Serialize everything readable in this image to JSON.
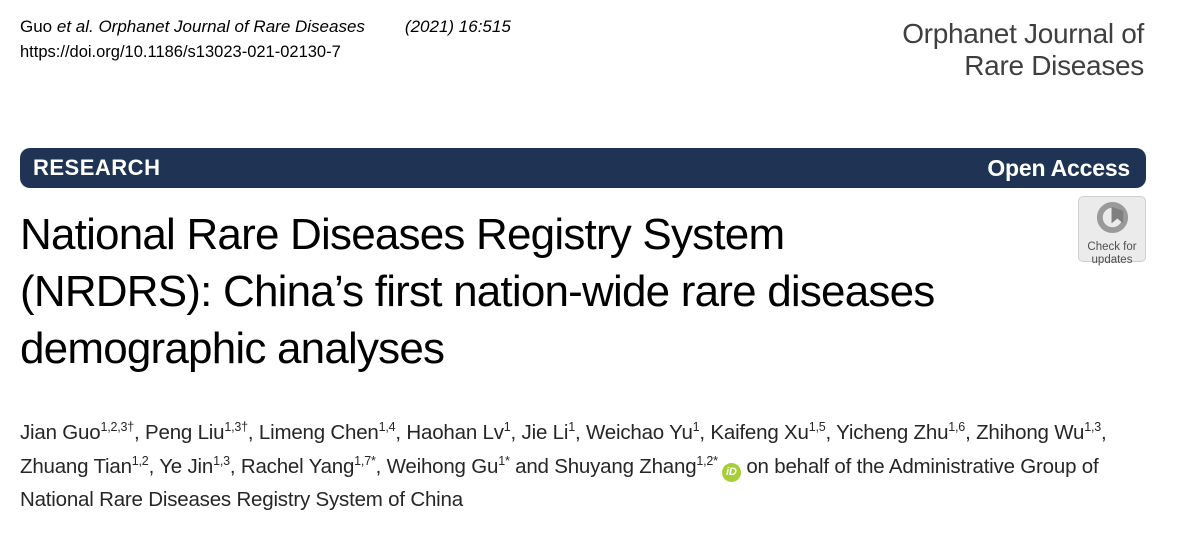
{
  "citation": {
    "author": "Guo",
    "journal_italic": " et al. Orphanet Journal of Rare Diseases",
    "issue": "(2021) 16:515",
    "doi": "https://doi.org/10.1186/s13023-021-02130-7"
  },
  "masthead": {
    "journal_name": "Orphanet Journal of\nRare Diseases"
  },
  "banner": {
    "type_label": "RESEARCH",
    "access_label": "Open Access",
    "background_color": "#1f3354",
    "text_color": "#ffffff"
  },
  "check_badge": {
    "label": "Check for\nupdates"
  },
  "article": {
    "title": "National Rare Diseases Registry System\n(NRDRS): China’s first nation-wide rare diseases\ndemographic analyses"
  },
  "authors": {
    "list": [
      {
        "name": "Jian Guo",
        "sup": "1,2,3†"
      },
      {
        "name": "Peng Liu",
        "sup": "1,3†"
      },
      {
        "name": "Limeng Chen",
        "sup": "1,4"
      },
      {
        "name": "Haohan Lv",
        "sup": "1"
      },
      {
        "name": "Jie Li",
        "sup": "1"
      },
      {
        "name": "Weichao Yu",
        "sup": "1"
      },
      {
        "name": "Kaifeng Xu",
        "sup": "1,5"
      },
      {
        "name": "Yicheng Zhu",
        "sup": "1,6"
      },
      {
        "name": "Zhihong Wu",
        "sup": "1,3"
      },
      {
        "name": "Zhuang Tian",
        "sup": "1,2"
      },
      {
        "name": "Ye Jin",
        "sup": "1,3"
      },
      {
        "name": "Rachel Yang",
        "sup": "1,7*"
      },
      {
        "name": "Weihong Gu",
        "sup": "1*"
      },
      {
        "name": "Shuyang Zhang",
        "sup": "1,2*",
        "orcid": true
      }
    ],
    "separator": ", ",
    "last_separator": " and ",
    "orcid_label": "iD",
    "orcid_color": "#a6ce39",
    "trailing": " on behalf of the Administrative Group of National Rare Diseases Registry System of China"
  }
}
